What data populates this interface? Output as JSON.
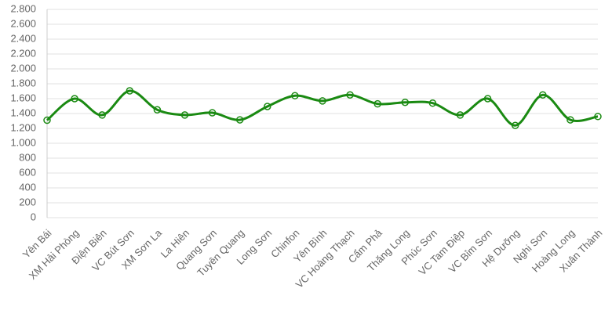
{
  "chart_data": {
    "type": "line",
    "categories": [
      "Yên Bái",
      "XM Hải Phòng",
      "Điện Biên",
      "VC Bút Sơn",
      "XM Sơn La",
      "La Hiên",
      "Quang Sơn",
      "Tuyên Quang",
      "Long Sơn",
      "Chinfon",
      "Yên Bình",
      "VC Hoàng Thạch",
      "Cẩm Phả",
      "Thăng Long",
      "Phúc Sơn",
      "VC Tam Điệp",
      "VC Bỉm Sơn",
      "Hệ Dưỡng",
      "Nghi Sơn",
      "Hoàng Long",
      "Xuân Thành"
    ],
    "values": [
      1310,
      1600,
      1380,
      1705,
      1450,
      1380,
      1410,
      1315,
      1495,
      1640,
      1570,
      1650,
      1530,
      1550,
      1540,
      1380,
      1600,
      1240,
      1650,
      1315,
      1360
    ],
    "color": "#1a8a12",
    "ylim": [
      0,
      2800
    ],
    "yticks": [
      0,
      200,
      400,
      600,
      800,
      {
        "value": 1000,
        "label": "1.000"
      },
      {
        "value": 1200,
        "label": "1.200"
      },
      {
        "value": 1400,
        "label": "1.400"
      },
      {
        "value": 1600,
        "label": "1.600"
      },
      {
        "value": 1800,
        "label": "1.800"
      },
      {
        "value": 2000,
        "label": "2.000"
      },
      {
        "value": 2200,
        "label": "2.200"
      },
      {
        "value": 2400,
        "label": "2.400"
      },
      {
        "value": 2600,
        "label": "2.600"
      },
      {
        "value": 2800,
        "label": "2.800"
      }
    ],
    "grid": true
  }
}
